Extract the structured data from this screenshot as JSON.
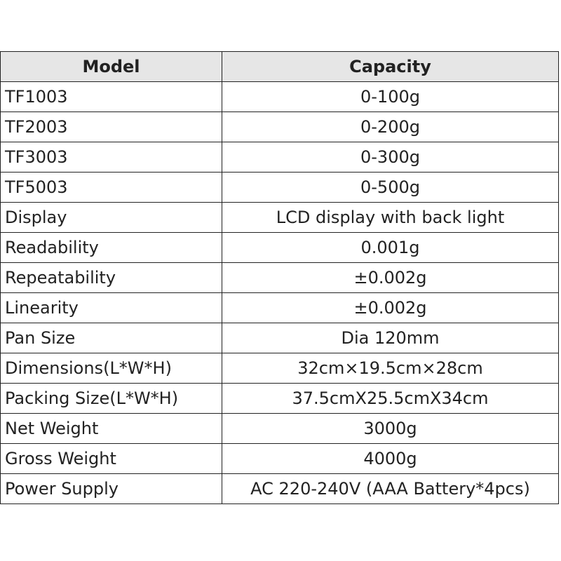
{
  "table": {
    "header": [
      "Model",
      "Capacity"
    ],
    "rows": [
      [
        "TF1003",
        "0-100g"
      ],
      [
        "TF2003",
        "0-200g"
      ],
      [
        "TF3003",
        "0-300g"
      ],
      [
        "TF5003",
        "0-500g"
      ],
      [
        "Display",
        "LCD display with back light"
      ],
      [
        "Readability",
        "0.001g"
      ],
      [
        "Repeatability",
        "±0.002g"
      ],
      [
        "Linearity",
        "±0.002g"
      ],
      [
        "Pan Size",
        "Dia 120mm"
      ],
      [
        "Dimensions(L*W*H)",
        "32cm×19.5cm×28cm"
      ],
      [
        "Packing Size(L*W*H)",
        "37.5cmX25.5cmX34cm"
      ],
      [
        "Net Weight",
        "3000g"
      ],
      [
        "Gross Weight",
        "4000g"
      ],
      [
        "Power Supply",
        "AC 220-240V (AAA Battery*4pcs)"
      ]
    ]
  }
}
